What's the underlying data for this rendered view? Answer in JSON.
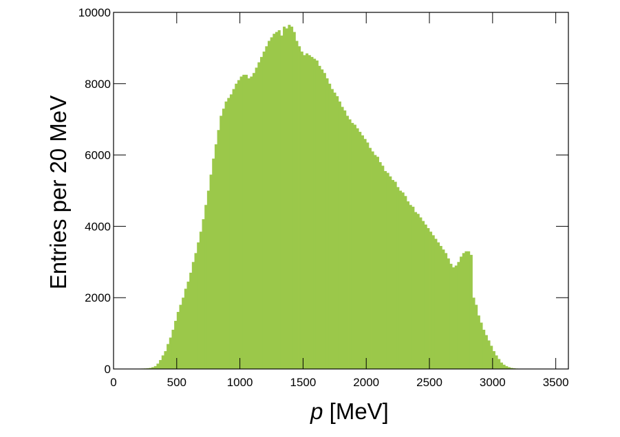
{
  "chart_data": {
    "type": "histogram",
    "y_label": "Entries per 20 MeV",
    "x_label": {
      "symbol": "p",
      "unit": "[MeV]"
    },
    "color": "#9bc84a",
    "xlim": [
      0,
      3600
    ],
    "ylim": [
      0,
      10000
    ],
    "xticks": [
      0,
      500,
      1000,
      1500,
      2000,
      2500,
      3000,
      3500
    ],
    "yticks": [
      0,
      2000,
      4000,
      6000,
      8000,
      10000
    ],
    "bins": [
      0,
      20,
      40,
      60,
      80,
      100,
      120,
      140,
      160,
      180,
      200,
      220,
      240,
      260,
      280,
      300,
      320,
      340,
      360,
      380,
      400,
      420,
      440,
      460,
      480,
      500,
      520,
      540,
      560,
      580,
      600,
      620,
      640,
      660,
      680,
      700,
      720,
      740,
      760,
      780,
      800,
      820,
      840,
      860,
      880,
      900,
      920,
      940,
      960,
      980,
      1000,
      1020,
      1040,
      1060,
      1080,
      1100,
      1120,
      1140,
      1160,
      1180,
      1200,
      1220,
      1240,
      1260,
      1280,
      1300,
      1320,
      1340,
      1360,
      1380,
      1400,
      1420,
      1440,
      1460,
      1480,
      1500,
      1520,
      1540,
      1560,
      1580,
      1600,
      1620,
      1640,
      1660,
      1680,
      1700,
      1720,
      1740,
      1760,
      1780,
      1800,
      1820,
      1840,
      1860,
      1880,
      1900,
      1920,
      1940,
      1960,
      1980,
      2000,
      2020,
      2040,
      2060,
      2080,
      2100,
      2120,
      2140,
      2160,
      2180,
      2200,
      2220,
      2240,
      2260,
      2280,
      2300,
      2320,
      2340,
      2360,
      2380,
      2400,
      2420,
      2440,
      2460,
      2480,
      2500,
      2520,
      2540,
      2560,
      2580,
      2600,
      2620,
      2640,
      2660,
      2680,
      2700,
      2720,
      2740,
      2760,
      2780,
      2800,
      2820,
      2840,
      2860,
      2880,
      2900,
      2920,
      2940,
      2960,
      2980,
      3000,
      3020,
      3040,
      3060,
      3080,
      3100,
      3120,
      3140,
      3160,
      3180,
      3200,
      3220,
      3240,
      3260,
      3280,
      3300,
      3320,
      3340,
      3360,
      3380,
      3400,
      3420,
      3440,
      3460,
      3480,
      3500,
      3520,
      3540,
      3560,
      3580,
      3600
    ],
    "values": [
      0,
      0,
      0,
      0,
      0,
      2,
      3,
      5,
      6,
      8,
      10,
      12,
      15,
      20,
      30,
      50,
      80,
      150,
      250,
      380,
      500,
      700,
      880,
      1100,
      1350,
      1600,
      1800,
      2000,
      2250,
      2450,
      2700,
      3000,
      3250,
      3550,
      3850,
      4200,
      4600,
      5000,
      5450,
      5900,
      6300,
      6700,
      7100,
      7300,
      7500,
      7600,
      7700,
      7850,
      8000,
      8100,
      8200,
      8250,
      8250,
      8150,
      8200,
      8300,
      8450,
      8600,
      8750,
      8900,
      9050,
      9200,
      9300,
      9400,
      9450,
      9500,
      9350,
      9600,
      9550,
      9650,
      9600,
      9450,
      9200,
      9050,
      8900,
      8800,
      8850,
      8800,
      8750,
      8700,
      8650,
      8500,
      8400,
      8300,
      8150,
      8000,
      7850,
      7750,
      7650,
      7500,
      7350,
      7250,
      7100,
      7000,
      6900,
      6850,
      6750,
      6650,
      6550,
      6450,
      6350,
      6200,
      6100,
      6000,
      5950,
      5800,
      5700,
      5550,
      5500,
      5400,
      5300,
      5250,
      5100,
      5000,
      4950,
      4850,
      4700,
      4600,
      4550,
      4400,
      4350,
      4250,
      4150,
      4050,
      3950,
      3850,
      3750,
      3650,
      3550,
      3450,
      3350,
      3250,
      3100,
      2950,
      2850,
      2900,
      3000,
      3150,
      3250,
      3300,
      3300,
      3200,
      2000,
      1800,
      1500,
      1300,
      1100,
      950,
      800,
      650,
      500,
      380,
      280,
      180,
      120,
      80,
      50,
      30,
      20,
      12,
      8,
      5,
      3,
      2,
      1,
      0,
      0,
      0,
      0,
      0,
      0,
      0,
      0,
      0,
      0,
      0,
      0,
      0,
      0,
      0
    ]
  }
}
